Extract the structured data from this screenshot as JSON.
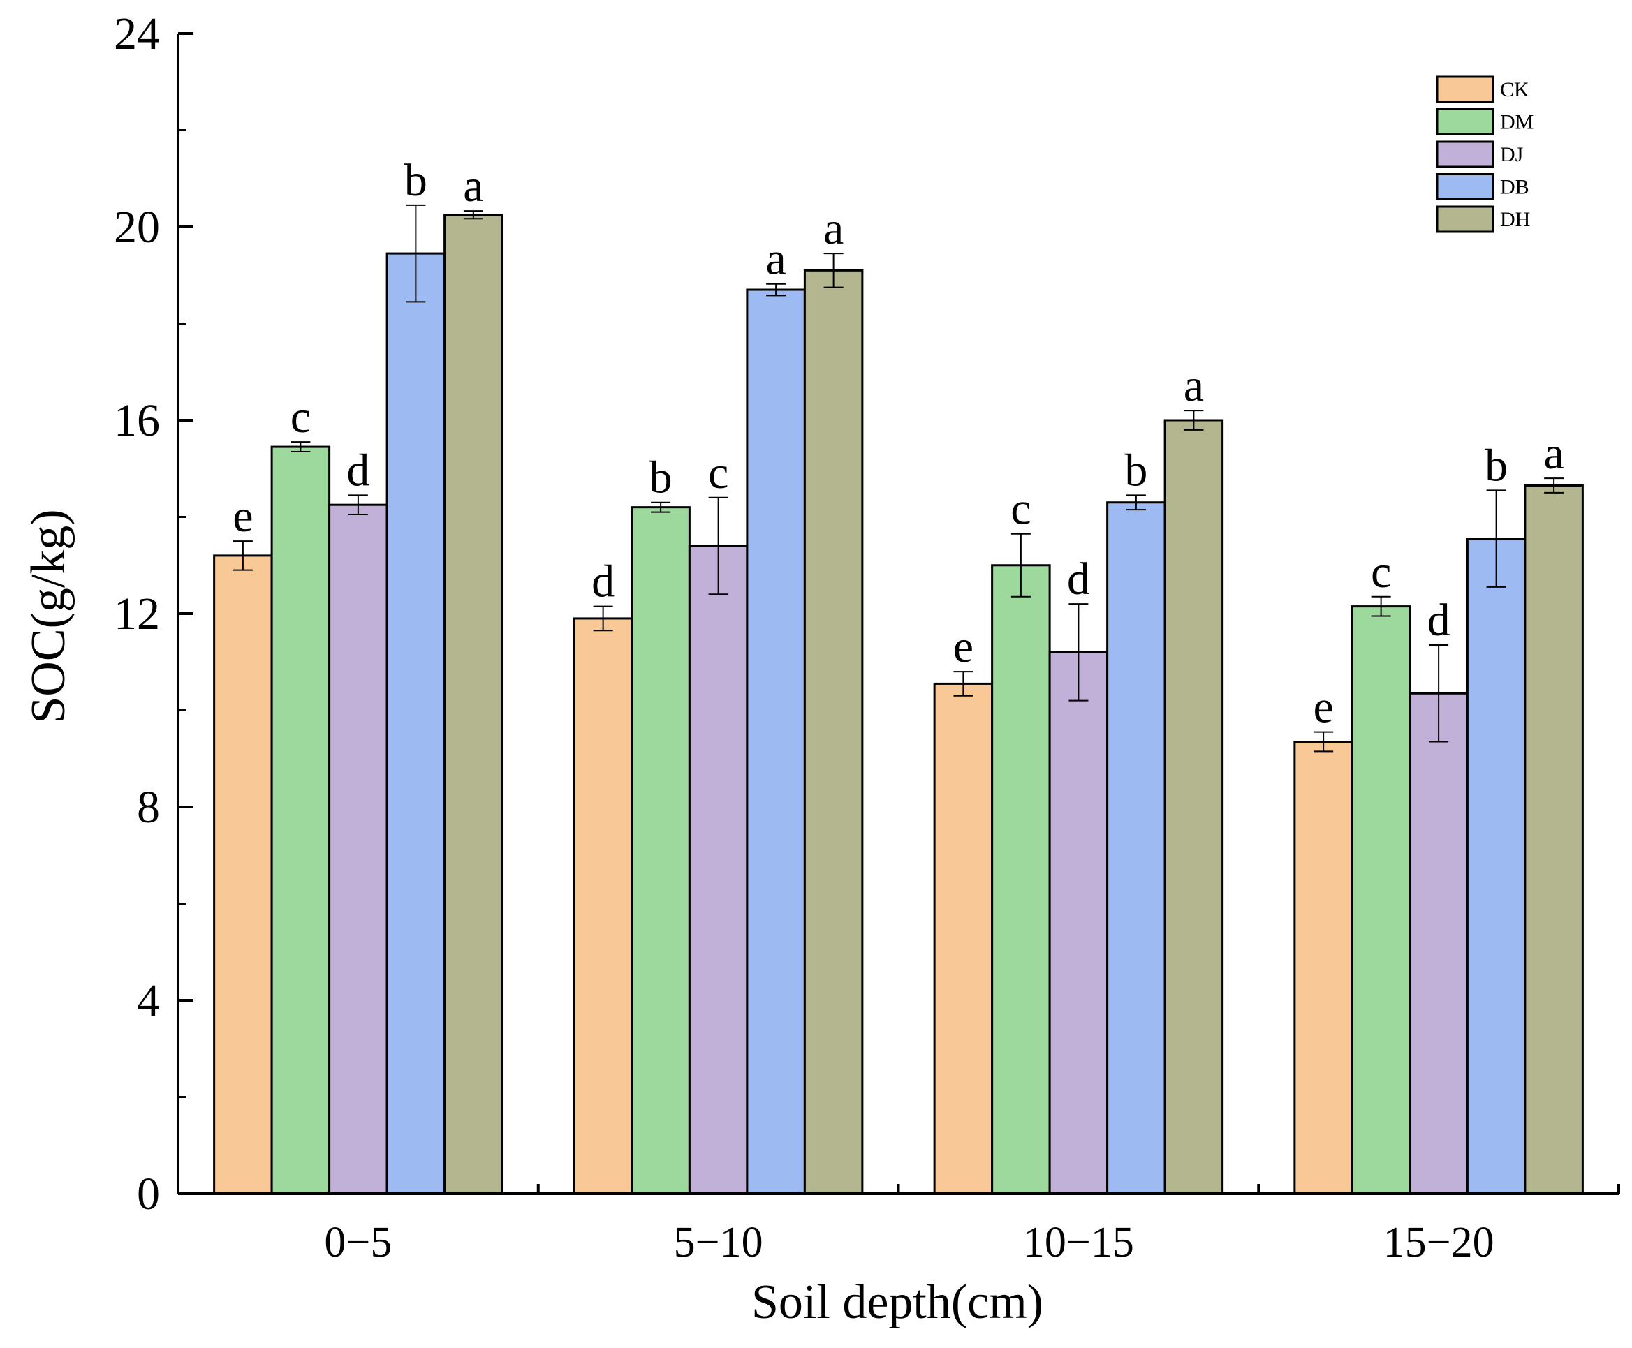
{
  "chart_data": {
    "type": "bar",
    "title": "",
    "xlabel": "Soil depth(cm)",
    "ylabel": "SOC(g/kg)",
    "ylim": [
      0,
      24
    ],
    "yticks": [
      "0",
      "4",
      "8",
      "12",
      "16",
      "20",
      "24"
    ],
    "ytick_values": [
      0,
      4,
      8,
      12,
      16,
      20,
      24
    ],
    "categories": [
      "0−5",
      "5−10",
      "10−15",
      "15−20"
    ],
    "legend_position": "top-right",
    "series": [
      {
        "name": "CK",
        "color": "#F9C897",
        "values": [
          13.2,
          11.9,
          10.55,
          9.35
        ],
        "errors": [
          0.3,
          0.25,
          0.25,
          0.2
        ],
        "letters": [
          "e",
          "d",
          "e",
          "e"
        ]
      },
      {
        "name": "DM",
        "color": "#9DD89C",
        "values": [
          15.45,
          14.2,
          13.0,
          12.15
        ],
        "errors": [
          0.1,
          0.1,
          0.65,
          0.2
        ],
        "letters": [
          "c",
          "b",
          "c",
          "c"
        ]
      },
      {
        "name": "DJ",
        "color": "#C1B1D8",
        "values": [
          14.25,
          13.4,
          11.2,
          10.35
        ],
        "errors": [
          0.2,
          1.0,
          1.0,
          1.0
        ],
        "letters": [
          "d",
          "c",
          "d",
          "d"
        ]
      },
      {
        "name": "DB",
        "color": "#9DBAF2",
        "values": [
          19.45,
          18.7,
          14.3,
          13.55
        ],
        "errors": [
          1.0,
          0.12,
          0.15,
          1.0
        ],
        "letters": [
          "b",
          "a",
          "b",
          "b"
        ]
      },
      {
        "name": "DH",
        "color": "#B3B68F",
        "values": [
          20.25,
          19.1,
          16.0,
          14.65
        ],
        "errors": [
          0.08,
          0.35,
          0.2,
          0.15
        ],
        "letters": [
          "a",
          "a",
          "a",
          "a"
        ]
      }
    ]
  }
}
